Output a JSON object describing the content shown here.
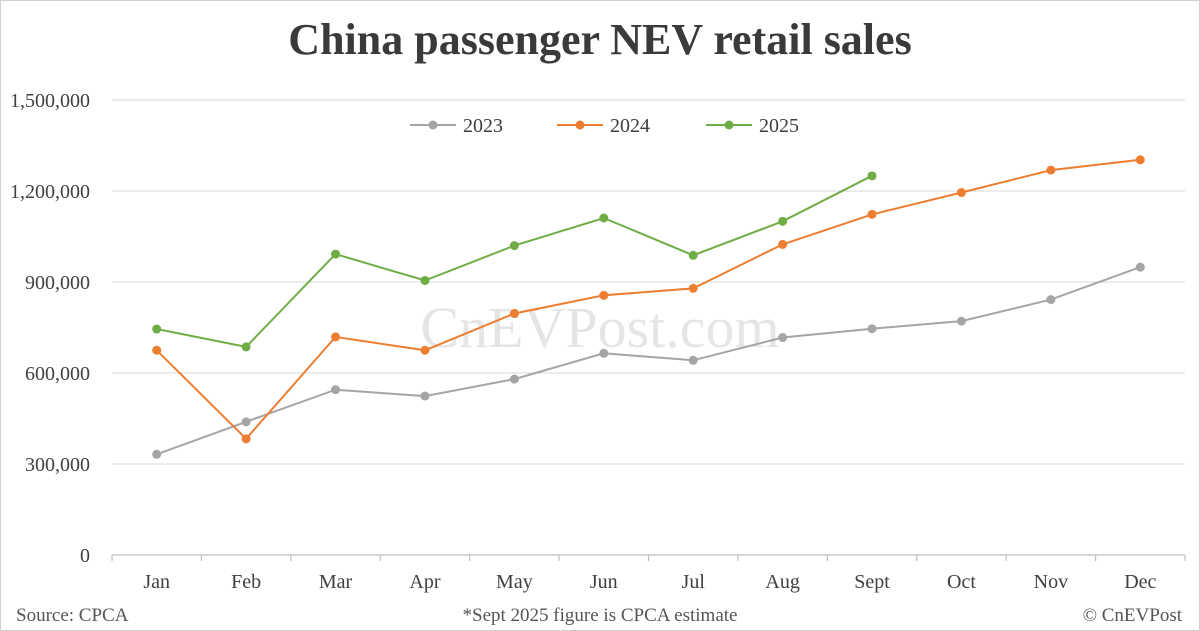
{
  "chart_data": {
    "type": "line",
    "title": "China passenger NEV retail sales",
    "categories": [
      "Jan",
      "Feb",
      "Mar",
      "Apr",
      "May",
      "Jun",
      "Jul",
      "Aug",
      "Sept",
      "Oct",
      "Nov",
      "Dec"
    ],
    "series": [
      {
        "name": "2023",
        "color": "#a5a5a5",
        "values": [
          332000,
          439000,
          545000,
          524000,
          580000,
          665000,
          642000,
          717000,
          746000,
          771000,
          842000,
          949000
        ]
      },
      {
        "name": "2024",
        "color": "#ed7d31",
        "values": [
          675000,
          383000,
          719000,
          675000,
          796000,
          856000,
          879000,
          1024000,
          1123000,
          1195000,
          1269000,
          1303000
        ]
      },
      {
        "name": "2025",
        "color": "#70ad47",
        "values": [
          745000,
          686000,
          992000,
          905000,
          1020000,
          1111000,
          988000,
          1100000,
          1250000,
          null,
          null,
          null
        ]
      }
    ],
    "ylim": [
      0,
      1500000
    ],
    "yticks": [
      0,
      300000,
      600000,
      900000,
      1200000,
      1500000
    ],
    "ytick_labels": [
      "0",
      "300,000",
      "600,000",
      "900,000",
      "1,200,000",
      "1,500,000"
    ],
    "grid": true,
    "legend_position": "top-center",
    "xlabel": "",
    "ylabel": ""
  },
  "watermark": "CnEVPost.com",
  "footer": {
    "source": "Source: CPCA",
    "note": "*Sept 2025 figure is CPCA estimate",
    "copyright": "© CnEVPost"
  }
}
